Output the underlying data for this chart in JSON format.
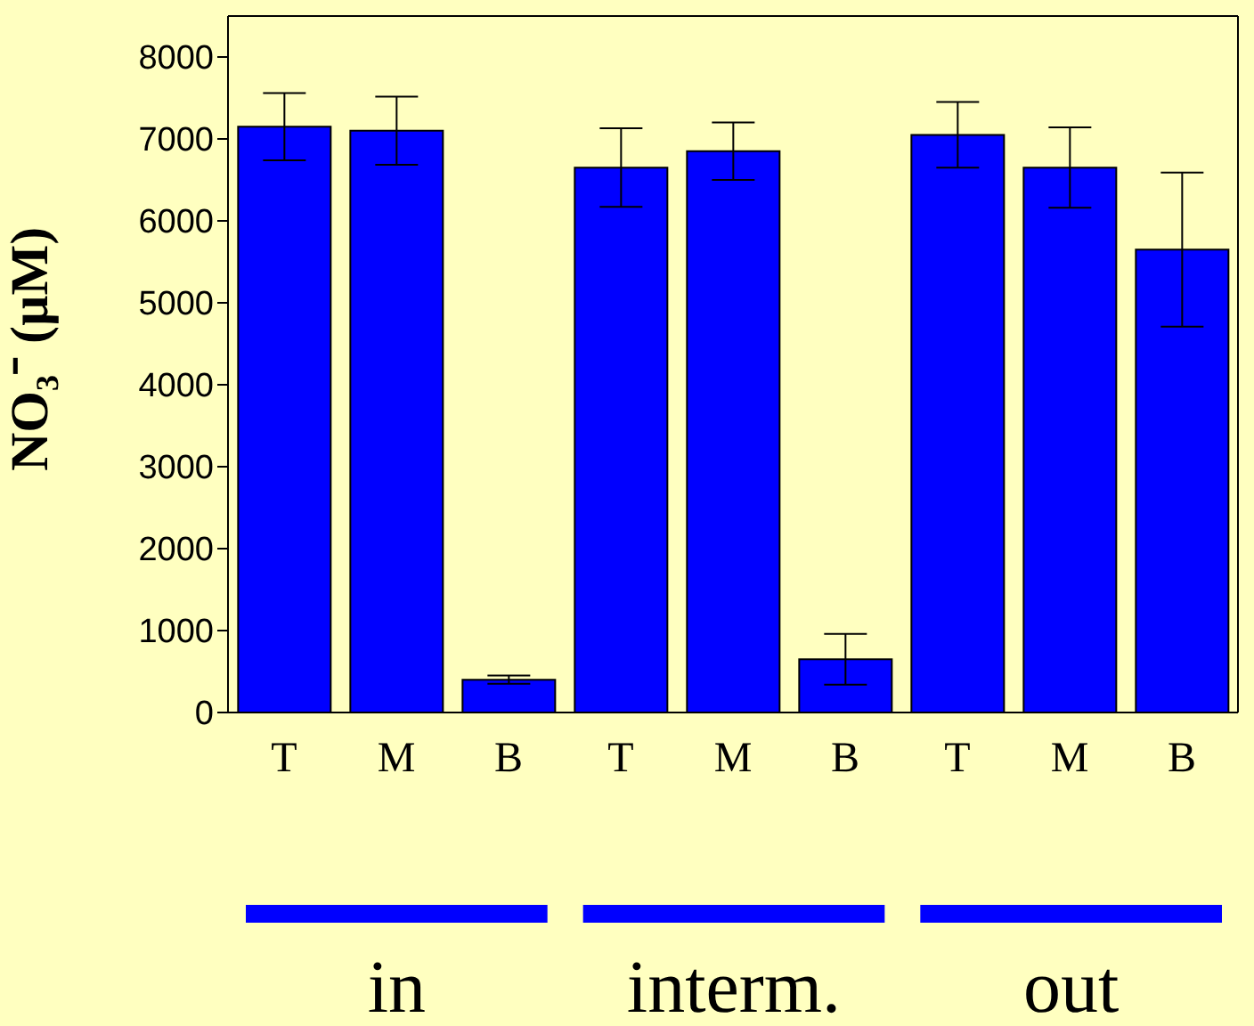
{
  "chart_data": {
    "type": "bar",
    "ylabel": "NO₃⁻ (µM)",
    "categories": [
      "T",
      "M",
      "B",
      "T",
      "M",
      "B",
      "T",
      "M",
      "B"
    ],
    "values": [
      7150,
      7100,
      400,
      6650,
      6850,
      650,
      7050,
      6650,
      5650
    ],
    "errors": [
      410,
      415,
      50,
      480,
      350,
      310,
      400,
      490,
      940
    ],
    "color": "#0000ff",
    "ylim": [
      0,
      8500
    ],
    "yticks": [
      0,
      1000,
      2000,
      3000,
      4000,
      5000,
      6000,
      7000,
      8000
    ],
    "annotations": [
      "in",
      "interm.",
      "out"
    ]
  }
}
